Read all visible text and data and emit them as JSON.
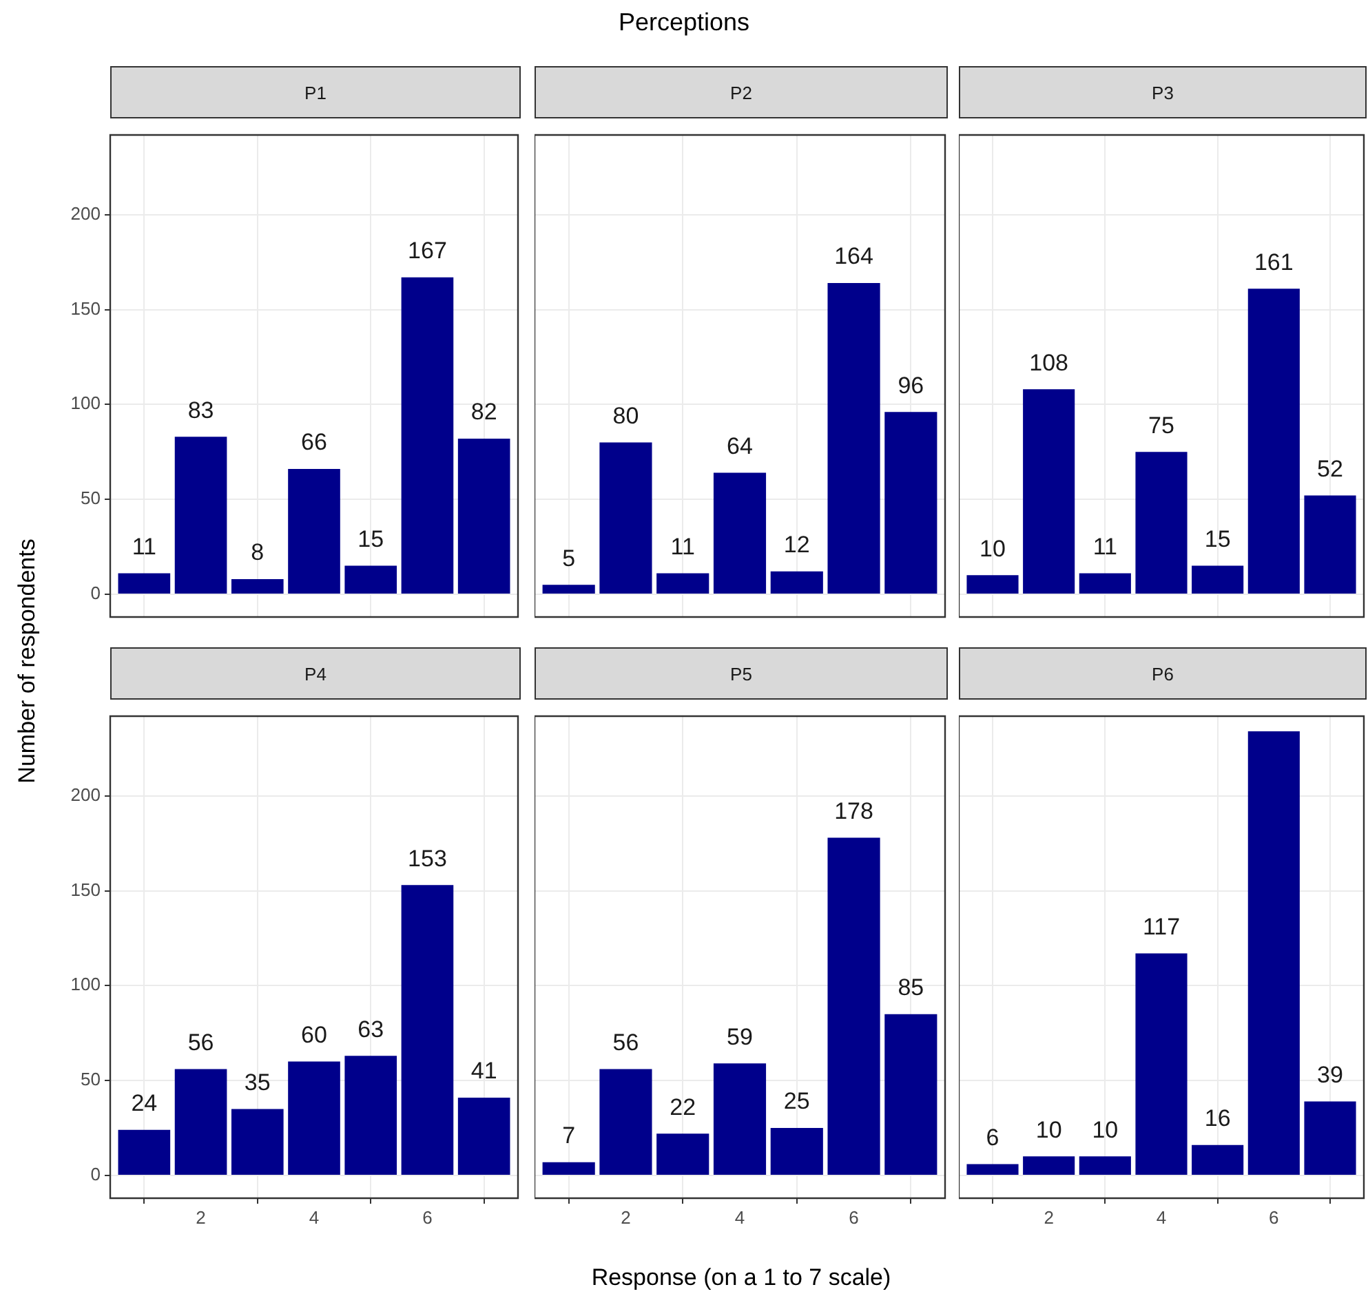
{
  "chart_data": [
    {
      "type": "bar",
      "title": "P1",
      "ylabel": "Number of respondents",
      "annotations": [
        "Perceptions"
      ],
      "x": [
        1,
        2,
        3,
        4,
        5,
        6,
        7
      ],
      "values": [
        11,
        83,
        8,
        66,
        15,
        167,
        82
      ],
      "color": "#00008b",
      "xlim": [
        0.4,
        7.6
      ],
      "xticks": [
        2,
        4,
        6
      ],
      "ylim": [
        -12,
        242
      ],
      "yticks": [
        0,
        50,
        100,
        150,
        200
      ],
      "grid": true,
      "legend": false,
      "data_labels": true,
      "tick_labels": "y"
    },
    {
      "type": "bar",
      "title": "P2",
      "x": [
        1,
        2,
        3,
        4,
        5,
        6,
        7
      ],
      "values": [
        5,
        80,
        11,
        64,
        12,
        164,
        96
      ],
      "color": "#00008b",
      "xlim": [
        0.4,
        7.6
      ],
      "xticks": [
        2,
        4,
        6
      ],
      "ylim": [
        -12,
        242
      ],
      "yticks": [
        0,
        50,
        100,
        150,
        200
      ],
      "grid": true,
      "legend": false,
      "data_labels": true,
      "tick_labels": false
    },
    {
      "type": "bar",
      "title": "P3",
      "x": [
        1,
        2,
        3,
        4,
        5,
        6,
        7
      ],
      "values": [
        10,
        108,
        11,
        75,
        15,
        161,
        52
      ],
      "color": "#00008b",
      "xlim": [
        0.4,
        7.6
      ],
      "xticks": [
        2,
        4,
        6
      ],
      "ylim": [
        -12,
        242
      ],
      "yticks": [
        0,
        50,
        100,
        150,
        200
      ],
      "grid": true,
      "legend": false,
      "data_labels": true,
      "tick_labels": false
    },
    {
      "type": "bar",
      "title": "P4",
      "x": [
        1,
        2,
        3,
        4,
        5,
        6,
        7
      ],
      "values": [
        24,
        56,
        35,
        60,
        63,
        153,
        41
      ],
      "color": "#00008b",
      "xlim": [
        0.4,
        7.6
      ],
      "xticks": [
        2,
        4,
        6
      ],
      "ylim": [
        -12,
        242
      ],
      "yticks": [
        0,
        50,
        100,
        150,
        200
      ],
      "grid": true,
      "legend": false,
      "data_labels": true
    },
    {
      "type": "bar",
      "title": "P5",
      "xlabel": "Response (on a 1 to 7 scale)",
      "x": [
        1,
        2,
        3,
        4,
        5,
        6,
        7
      ],
      "values": [
        7,
        56,
        22,
        59,
        25,
        178,
        85
      ],
      "color": "#00008b",
      "xlim": [
        0.4,
        7.6
      ],
      "xticks": [
        2,
        4,
        6
      ],
      "ylim": [
        -12,
        242
      ],
      "yticks": [
        0,
        50,
        100,
        150,
        200
      ],
      "grid": true,
      "legend": false,
      "data_labels": true,
      "tick_labels": "x"
    },
    {
      "type": "bar",
      "title": "P6",
      "x": [
        1,
        2,
        3,
        4,
        5,
        6,
        7
      ],
      "values": [
        6,
        10,
        10,
        117,
        16,
        234,
        39
      ],
      "value_labels": [
        "6",
        "10",
        "10",
        "117",
        "16",
        null,
        "39"
      ],
      "color": "#00008b",
      "xlim": [
        0.4,
        7.6
      ],
      "xticks": [
        2,
        4,
        6
      ],
      "ylim": [
        -12,
        242
      ],
      "yticks": [
        0,
        50,
        100,
        150,
        200
      ],
      "grid": true,
      "legend": false,
      "tick_labels": "x"
    }
  ]
}
